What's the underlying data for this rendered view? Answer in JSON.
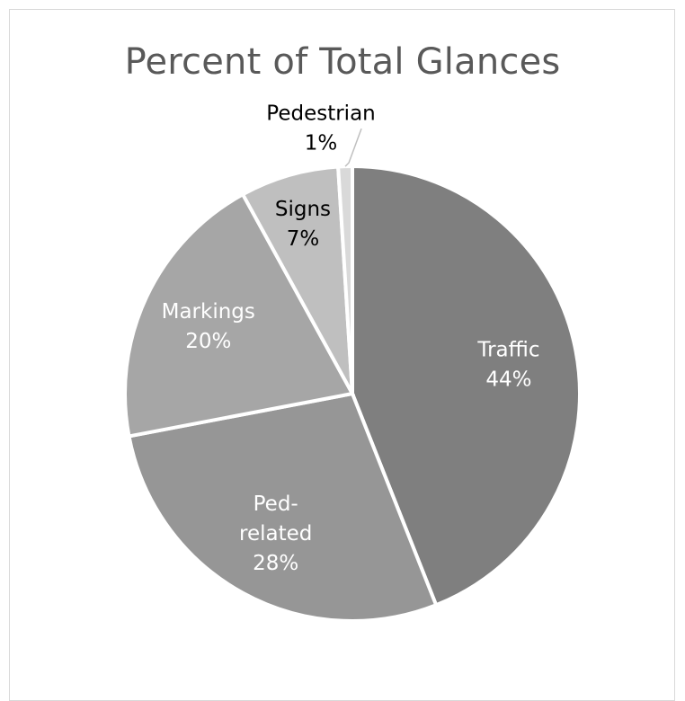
{
  "chart_data": {
    "type": "pie",
    "title": "Percent of Total Glances",
    "start_angle_deg": 0,
    "direction": "clockwise",
    "slices": [
      {
        "category": "Traffic",
        "value": 44,
        "label_lines": [
          "Traffic",
          "44%"
        ],
        "color": "#7f7f7f",
        "label_color": "#ffffff",
        "label_pos": "inside"
      },
      {
        "category": "Ped-related",
        "value": 28,
        "label_lines": [
          "Ped-",
          "related",
          "28%"
        ],
        "color": "#969696",
        "label_color": "#ffffff",
        "label_pos": "inside"
      },
      {
        "category": "Markings",
        "value": 20,
        "label_lines": [
          "Markings",
          "20%"
        ],
        "color": "#a6a6a6",
        "label_color": "#ffffff",
        "label_pos": "inside"
      },
      {
        "category": "Signs",
        "value": 7,
        "label_lines": [
          "Signs",
          "7%"
        ],
        "color": "#bfbfbf",
        "label_color": "#000000",
        "label_pos": "inside"
      },
      {
        "category": "Pedestrian",
        "value": 1,
        "label_lines": [
          "Pedestrian",
          "1%"
        ],
        "color": "#d9d9d9",
        "label_color": "#000000",
        "label_pos": "outside-with-leader"
      }
    ],
    "legend": "none"
  }
}
